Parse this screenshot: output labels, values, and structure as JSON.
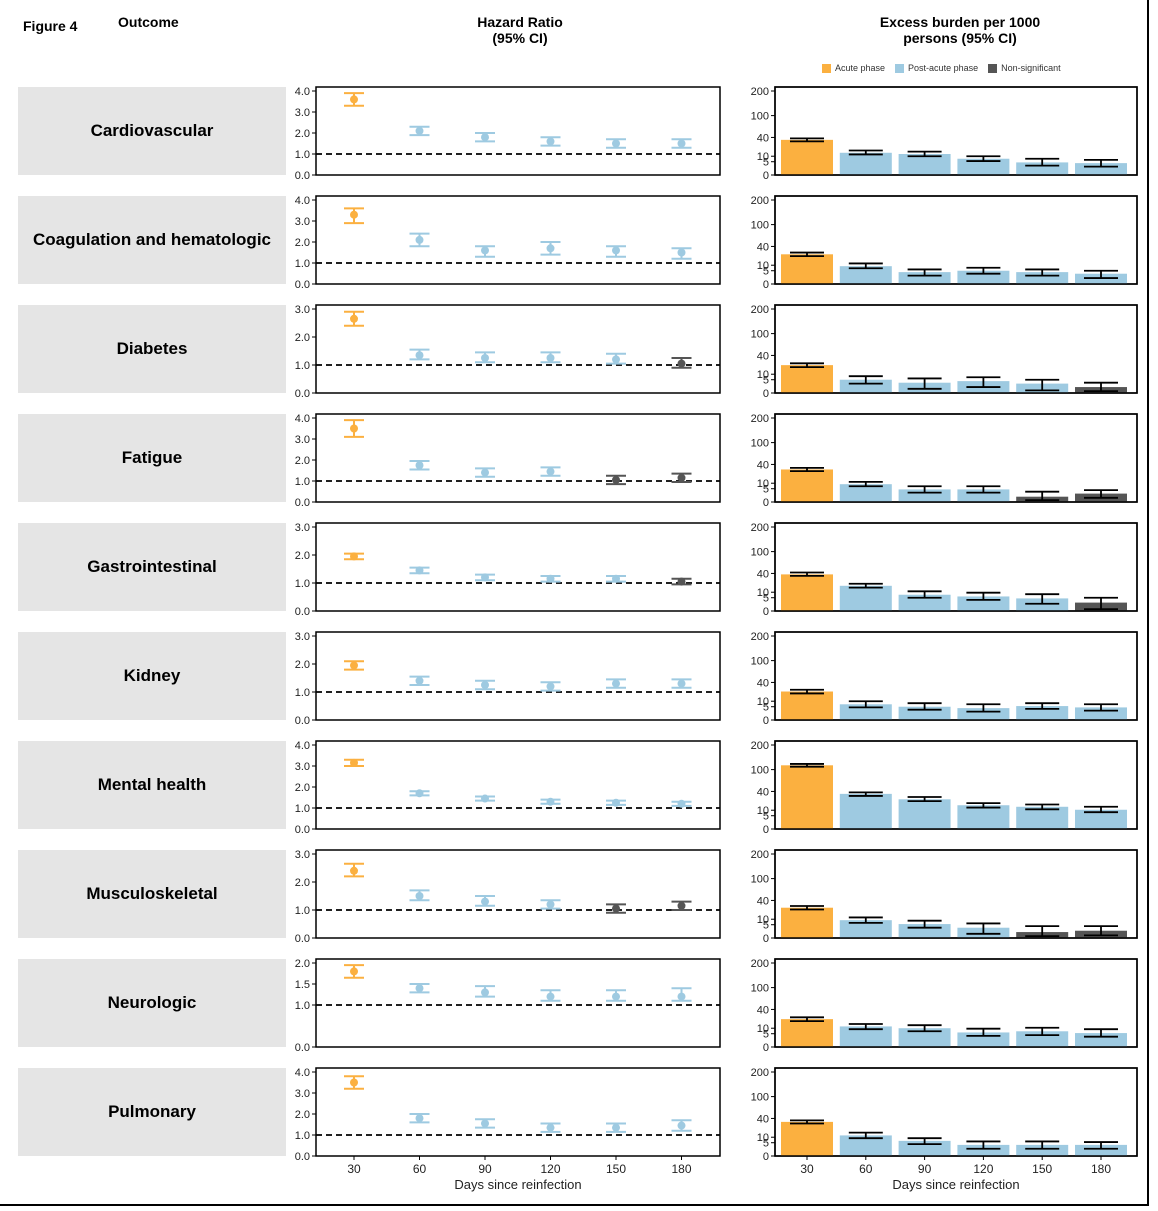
{
  "figure_label": "Figure 4",
  "outcome_header": "Outcome",
  "hr_header": [
    "Hazard Ratio",
    "(95% CI)"
  ],
  "eb_header": [
    "Excess burden per 1000",
    "persons (95% CI)"
  ],
  "legend": [
    {
      "label": "Acute phase",
      "color": "#fbb040"
    },
    {
      "label": "Post-acute phase",
      "color": "#9ecae1"
    },
    {
      "label": "Non-significant",
      "color": "#555555"
    }
  ],
  "colors": {
    "acute": "#fbb040",
    "post": "#9ecae1",
    "ns": "#555555"
  },
  "x_axis_label": "Days since reinfection",
  "chart_data": [
    {
      "type": "scatter",
      "name": "Hazard Ratio",
      "x": [
        30,
        60,
        90,
        120,
        150,
        180
      ],
      "xlabel": "Days since reinfection",
      "reference_line": 1.0,
      "panels": [
        {
          "outcome": "Cardiovascular",
          "ymax": 4.0,
          "ticks": [
            0.0,
            1.0,
            2.0,
            3.0,
            4.0
          ],
          "ticklabels": [
            "0.0",
            "1.0",
            "2.0",
            "3.0",
            "4.0"
          ],
          "hr": [
            3.6,
            2.1,
            1.8,
            1.6,
            1.5,
            1.5
          ],
          "lo": [
            3.3,
            1.9,
            1.6,
            1.4,
            1.3,
            1.3
          ],
          "hi": [
            3.9,
            2.3,
            2.0,
            1.8,
            1.7,
            1.7
          ],
          "phase": [
            "acute",
            "post",
            "post",
            "post",
            "post",
            "post"
          ]
        },
        {
          "outcome": "Coagulation and hematologic",
          "ymax": 4.0,
          "ticks": [
            0.0,
            1.0,
            2.0,
            3.0,
            4.0
          ],
          "ticklabels": [
            "0.0",
            "1.0",
            "2.0",
            "3.0",
            "4.0"
          ],
          "hr": [
            3.3,
            2.1,
            1.6,
            1.7,
            1.6,
            1.5
          ],
          "lo": [
            2.9,
            1.8,
            1.3,
            1.4,
            1.3,
            1.2
          ],
          "hi": [
            3.6,
            2.4,
            1.8,
            2.0,
            1.8,
            1.7
          ],
          "phase": [
            "acute",
            "post",
            "post",
            "post",
            "post",
            "post"
          ]
        },
        {
          "outcome": "Diabetes",
          "ymax": 3.0,
          "ticks": [
            0.0,
            1.0,
            2.0,
            3.0
          ],
          "ticklabels": [
            "0.0",
            "1.0",
            "2.0",
            "3.0"
          ],
          "hr": [
            2.65,
            1.35,
            1.25,
            1.25,
            1.2,
            1.05
          ],
          "lo": [
            2.4,
            1.2,
            1.1,
            1.1,
            1.05,
            0.9
          ],
          "hi": [
            2.9,
            1.55,
            1.45,
            1.45,
            1.4,
            1.25
          ],
          "phase": [
            "acute",
            "post",
            "post",
            "post",
            "post",
            "ns"
          ]
        },
        {
          "outcome": "Fatigue",
          "ymax": 4.0,
          "ticks": [
            0.0,
            1.0,
            2.0,
            3.0,
            4.0
          ],
          "ticklabels": [
            "0.0",
            "1.0",
            "2.0",
            "3.0",
            "4.0"
          ],
          "hr": [
            3.5,
            1.75,
            1.4,
            1.45,
            1.05,
            1.15
          ],
          "lo": [
            3.1,
            1.55,
            1.2,
            1.25,
            0.85,
            0.95
          ],
          "hi": [
            3.9,
            1.95,
            1.6,
            1.65,
            1.25,
            1.35
          ],
          "phase": [
            "acute",
            "post",
            "post",
            "post",
            "ns",
            "ns"
          ]
        },
        {
          "outcome": "Gastrointestinal",
          "ymax": 3.0,
          "ticks": [
            0.0,
            1.0,
            2.0,
            3.0
          ],
          "ticklabels": [
            "0.0",
            "1.0",
            "2.0",
            "3.0"
          ],
          "hr": [
            1.95,
            1.45,
            1.2,
            1.15,
            1.15,
            1.05
          ],
          "lo": [
            1.85,
            1.35,
            1.1,
            1.05,
            1.05,
            0.95
          ],
          "hi": [
            2.05,
            1.55,
            1.3,
            1.25,
            1.25,
            1.15
          ],
          "phase": [
            "acute",
            "post",
            "post",
            "post",
            "post",
            "ns"
          ]
        },
        {
          "outcome": "Kidney",
          "ymax": 3.0,
          "ticks": [
            0.0,
            1.0,
            2.0,
            3.0
          ],
          "ticklabels": [
            "0.0",
            "1.0",
            "2.0",
            "3.0"
          ],
          "hr": [
            1.95,
            1.4,
            1.25,
            1.2,
            1.3,
            1.3
          ],
          "lo": [
            1.8,
            1.25,
            1.1,
            1.05,
            1.15,
            1.15
          ],
          "hi": [
            2.1,
            1.55,
            1.4,
            1.35,
            1.45,
            1.45
          ],
          "phase": [
            "acute",
            "post",
            "post",
            "post",
            "post",
            "post"
          ]
        },
        {
          "outcome": "Mental health",
          "ymax": 4.0,
          "ticks": [
            0.0,
            1.0,
            2.0,
            3.0,
            4.0
          ],
          "ticklabels": [
            "0.0",
            "1.0",
            "2.0",
            "3.0",
            "4.0"
          ],
          "hr": [
            3.15,
            1.7,
            1.45,
            1.3,
            1.25,
            1.2
          ],
          "lo": [
            3.0,
            1.6,
            1.35,
            1.2,
            1.15,
            1.1
          ],
          "hi": [
            3.3,
            1.8,
            1.55,
            1.4,
            1.35,
            1.3
          ],
          "phase": [
            "acute",
            "post",
            "post",
            "post",
            "post",
            "post"
          ]
        },
        {
          "outcome": "Musculoskeletal",
          "ymax": 3.0,
          "ticks": [
            0.0,
            1.0,
            2.0,
            3.0
          ],
          "ticklabels": [
            "0.0",
            "1.0",
            "2.0",
            "3.0"
          ],
          "hr": [
            2.4,
            1.5,
            1.3,
            1.2,
            1.05,
            1.15
          ],
          "lo": [
            2.2,
            1.35,
            1.15,
            1.05,
            0.9,
            1.0
          ],
          "hi": [
            2.65,
            1.7,
            1.5,
            1.35,
            1.2,
            1.3
          ],
          "phase": [
            "acute",
            "post",
            "post",
            "post",
            "ns",
            "ns"
          ]
        },
        {
          "outcome": "Neurologic",
          "ymax": 2.0,
          "ticks": [
            0.0,
            1.0,
            1.5,
            2.0
          ],
          "ticklabels": [
            "0.0",
            "1.0",
            "1.5",
            "2.0"
          ],
          "hr": [
            1.8,
            1.4,
            1.3,
            1.2,
            1.2,
            1.2
          ],
          "lo": [
            1.65,
            1.3,
            1.2,
            1.1,
            1.1,
            1.1
          ],
          "hi": [
            1.95,
            1.5,
            1.45,
            1.35,
            1.35,
            1.4
          ],
          "phase": [
            "acute",
            "post",
            "post",
            "post",
            "post",
            "post"
          ]
        },
        {
          "outcome": "Pulmonary",
          "ymax": 4.0,
          "ticks": [
            0.0,
            1.0,
            2.0,
            3.0,
            4.0
          ],
          "ticklabels": [
            "0.0",
            "1.0",
            "2.0",
            "3.0",
            "4.0"
          ],
          "hr": [
            3.5,
            1.8,
            1.55,
            1.35,
            1.35,
            1.45
          ],
          "lo": [
            3.2,
            1.6,
            1.35,
            1.15,
            1.15,
            1.2
          ],
          "hi": [
            3.8,
            2.0,
            1.75,
            1.55,
            1.55,
            1.7
          ],
          "phase": [
            "acute",
            "post",
            "post",
            "post",
            "post",
            "post"
          ]
        }
      ]
    },
    {
      "type": "bar",
      "name": "Excess burden per 1000 persons",
      "categories": [
        30,
        60,
        90,
        120,
        150,
        180
      ],
      "xlabel": "Days since reinfection",
      "yscale": "sqrt",
      "ylim": [
        0,
        200
      ],
      "ticks": [
        0,
        5,
        10,
        40,
        100,
        200
      ],
      "ticklabels": [
        "0",
        "5",
        "10",
        "40",
        "100",
        "200"
      ],
      "panels": [
        {
          "outcome": "Cardiovascular",
          "values": [
            35,
            14,
            12.5,
            7.5,
            4.5,
            4
          ],
          "lo": [
            32,
            12,
            10,
            5.5,
            2.5,
            2
          ],
          "hi": [
            38,
            17,
            15.5,
            10,
            7.5,
            6.5
          ],
          "phase": [
            "acute",
            "post",
            "post",
            "post",
            "post",
            "post"
          ]
        },
        {
          "outcome": "Coagulation and hematologic",
          "values": [
            25,
            9,
            4,
            5,
            4,
            3
          ],
          "lo": [
            22,
            7,
            2,
            3,
            2,
            1
          ],
          "hi": [
            28,
            12,
            6,
            7.5,
            6,
            5
          ],
          "phase": [
            "acute",
            "post",
            "post",
            "post",
            "post",
            "post"
          ]
        },
        {
          "outcome": "Diabetes",
          "values": [
            22,
            5,
            3,
            4,
            2.5,
            1
          ],
          "lo": [
            19,
            2.5,
            0.5,
            1,
            0.2,
            0.1
          ],
          "hi": [
            25,
            8,
            6,
            7,
            5,
            3
          ],
          "phase": [
            "acute",
            "post",
            "post",
            "post",
            "post",
            "ns"
          ]
        },
        {
          "outcome": "Fatigue",
          "values": [
            30,
            9,
            4.5,
            4.5,
            0.8,
            2
          ],
          "lo": [
            27,
            7,
            2.5,
            2.5,
            0.1,
            0.5
          ],
          "hi": [
            33,
            11.5,
            7,
            7,
            3,
            4
          ]
        },
        {
          "outcome": "Gastrointestinal",
          "values": [
            38,
            18,
            7.5,
            6,
            4.5,
            2
          ],
          "lo": [
            35,
            15.5,
            5,
            3.5,
            1.5,
            0.1
          ],
          "hi": [
            42,
            21,
            11,
            9.5,
            8,
            5
          ]
        },
        {
          "outcome": "Kidney",
          "values": [
            23,
            7,
            5,
            4,
            5.5,
            4.5
          ],
          "lo": [
            20,
            4.5,
            3,
            2,
            3.5,
            2.5
          ],
          "hi": [
            26,
            10,
            8,
            7,
            8,
            7
          ]
        },
        {
          "outcome": "Mental health",
          "values": [
            115,
            35,
            25,
            16,
            14,
            10.5
          ],
          "lo": [
            110,
            31,
            22,
            13,
            11,
            8
          ],
          "hi": [
            120,
            38,
            29,
            19,
            17,
            14
          ]
        },
        {
          "outcome": "Musculoskeletal",
          "values": [
            26,
            9,
            5.5,
            3,
            1,
            1.5
          ],
          "lo": [
            23,
            6.5,
            3,
            0.5,
            0.1,
            0.2
          ],
          "hi": [
            29,
            12,
            8.5,
            6,
            4,
            4
          ]
        },
        {
          "outcome": "Neurologic",
          "values": [
            22,
            12,
            10,
            6,
            7,
            5.5
          ],
          "lo": [
            19,
            9,
            7,
            3.5,
            4,
            3
          ],
          "hi": [
            25,
            15,
            13.5,
            9.5,
            10.5,
            9
          ]
        },
        {
          "outcome": "Pulmonary",
          "values": [
            33,
            12,
            6.5,
            3.5,
            3.5,
            3.5
          ],
          "lo": [
            30,
            9,
            4,
            1.5,
            1.5,
            1.5
          ],
          "hi": [
            36,
            15.5,
            9,
            6,
            6,
            5.5
          ]
        }
      ]
    }
  ]
}
